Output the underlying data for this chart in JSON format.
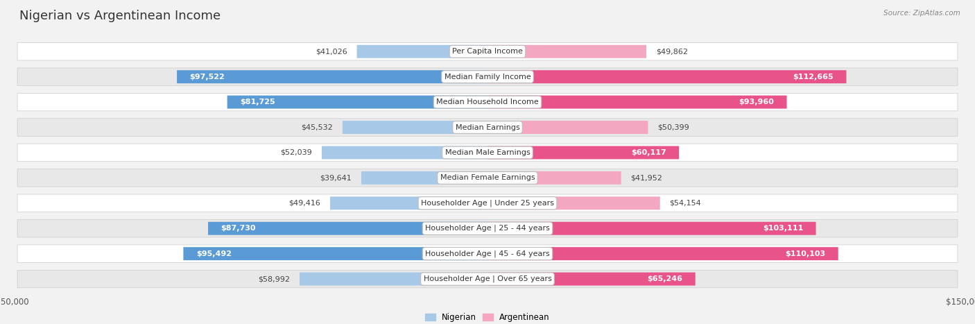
{
  "title": "Nigerian vs Argentinean Income",
  "source": "Source: ZipAtlas.com",
  "categories": [
    "Per Capita Income",
    "Median Family Income",
    "Median Household Income",
    "Median Earnings",
    "Median Male Earnings",
    "Median Female Earnings",
    "Householder Age | Under 25 years",
    "Householder Age | 25 - 44 years",
    "Householder Age | 45 - 64 years",
    "Householder Age | Over 65 years"
  ],
  "nigerian": [
    41026,
    97522,
    81725,
    45532,
    52039,
    39641,
    49416,
    87730,
    95492,
    58992
  ],
  "argentinean": [
    49862,
    112665,
    93960,
    50399,
    60117,
    41952,
    54154,
    103111,
    110103,
    65246
  ],
  "nigerian_color_light": "#a8c8e8",
  "nigerian_color_dark": "#5b9bd5",
  "argentinean_color_light": "#f4a7c0",
  "argentinean_color_dark": "#e8538a",
  "nigerian_label": "Nigerian",
  "argentinean_label": "Argentinean",
  "bar_height": 0.52,
  "xlim": 150000,
  "bg_color": "#f2f2f2",
  "row_bg_light": "#ffffff",
  "row_bg_dark": "#e8e8e8",
  "title_fontsize": 13,
  "label_fontsize": 8,
  "value_fontsize": 8,
  "axis_label_fontsize": 8.5,
  "legend_fontsize": 8.5,
  "nig_inside_threshold": 60000,
  "arg_inside_threshold": 60000
}
